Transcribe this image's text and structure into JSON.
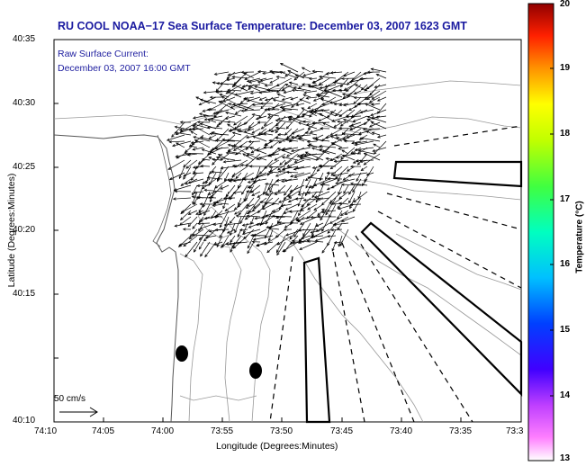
{
  "title": "RU COOL  NOAA−17  Sea Surface Temperature:  December 03, 2007 1623 GMT",
  "annotation": {
    "line1": "Raw Surface Current:",
    "line2": "December 03, 2007 16:00 GMT"
  },
  "y_axis": {
    "label": "Latitude (Degrees:Minutes)",
    "ticks": [
      "40:35",
      "40:30",
      "40:25",
      "40:20",
      "40:15",
      "40:10"
    ]
  },
  "x_axis": {
    "label": "Longitude (Degrees:Minutes)",
    "ticks": [
      "74:10",
      "74:05",
      "74:00",
      "73:55",
      "73:50",
      "73:45",
      "73:40",
      "73:35",
      "73:3"
    ]
  },
  "scale_vector": {
    "label": "50 cm/s",
    "value_cm_s": 50
  },
  "colorbar": {
    "label": "Temperature (°C)",
    "ticks": [
      "20",
      "19",
      "18",
      "17",
      "16",
      "15",
      "14",
      "13"
    ],
    "min": 13,
    "max": 20,
    "colors": [
      "#ff00ff",
      "#0000ff",
      "#00ffff",
      "#00ff00",
      "#ffff00",
      "#ff8000",
      "#ff0000",
      "#800000"
    ]
  },
  "colors": {
    "title": "#1a1aa0",
    "contour": "#888888",
    "coast": "#555555",
    "frame": "#000000"
  }
}
